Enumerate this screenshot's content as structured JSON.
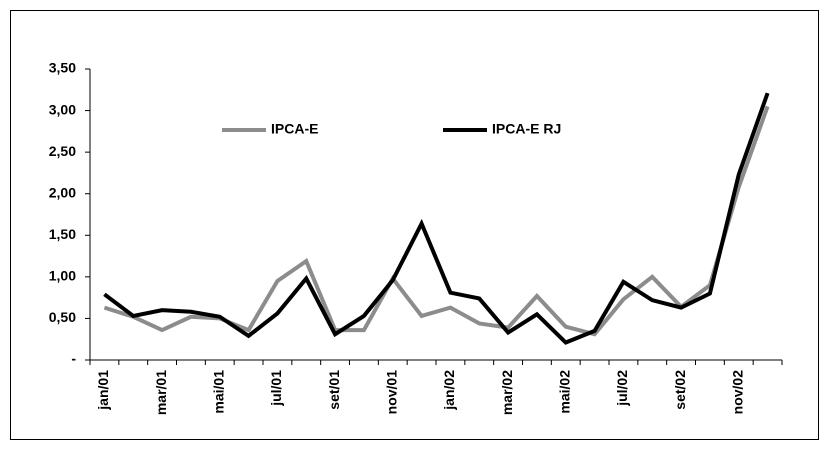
{
  "chart_data": {
    "type": "line",
    "categories": [
      "jan/01",
      null,
      "mar/01",
      null,
      "mai/01",
      null,
      "jul/01",
      null,
      "set/01",
      null,
      "nov/01",
      null,
      "jan/02",
      null,
      "mar/02",
      null,
      "mai/02",
      null,
      "jul/02",
      null,
      "set/02",
      null,
      "nov/02",
      null
    ],
    "series": [
      {
        "name": "IPCA-E",
        "color": "#8c8c8c",
        "values": [
          0.63,
          0.52,
          0.36,
          0.52,
          0.5,
          0.36,
          0.95,
          1.19,
          0.36,
          0.36,
          0.98,
          0.53,
          0.63,
          0.44,
          0.39,
          0.77,
          0.4,
          0.31,
          0.73,
          1.0,
          0.64,
          0.9,
          2.08,
          3.05
        ]
      },
      {
        "name": "IPCA-E RJ",
        "color": "#000000",
        "values": [
          0.79,
          0.53,
          0.6,
          0.58,
          0.52,
          0.29,
          0.56,
          0.98,
          0.31,
          0.53,
          0.96,
          1.64,
          0.81,
          0.74,
          0.33,
          0.55,
          0.21,
          0.35,
          0.94,
          0.72,
          0.63,
          0.8,
          2.23,
          3.21
        ]
      }
    ],
    "ylim": [
      0,
      3.5
    ],
    "yticks": [
      {
        "value": 0,
        "label": "-"
      },
      {
        "value": 0.5,
        "label": "0,50"
      },
      {
        "value": 1,
        "label": "1,00"
      },
      {
        "value": 1.5,
        "label": "1,50"
      },
      {
        "value": 2,
        "label": "2,00"
      },
      {
        "value": 2.5,
        "label": "2,50"
      },
      {
        "value": 3,
        "label": "3,00"
      },
      {
        "value": 3.5,
        "label": "3,50"
      }
    ],
    "legend": "top-left"
  }
}
